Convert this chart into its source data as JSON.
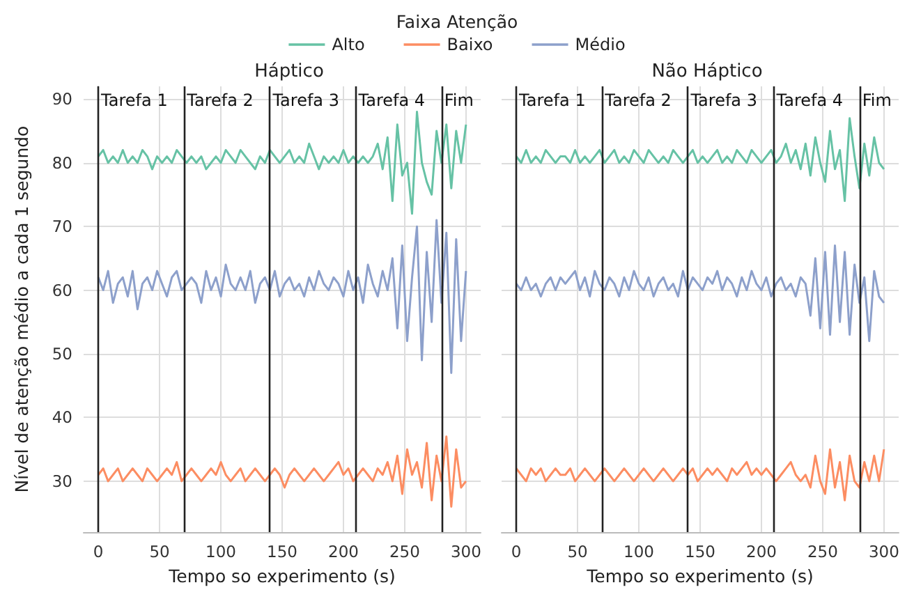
{
  "chart_data": [
    {
      "type": "line",
      "title": "Háptico",
      "xlabel": "Tempo so experimento (s)",
      "ylabel": "Nível de atenção médio a cada 1 segundo",
      "legend_title": "Faixa Atenção",
      "legend": "top",
      "grid": true,
      "xlim": [
        -12,
        312
      ],
      "xticks": [
        0,
        50,
        100,
        150,
        200,
        250,
        300
      ],
      "ylim": [
        22,
        92
      ],
      "yticks": [
        30,
        40,
        50,
        60,
        70,
        80,
        90
      ],
      "x": [
        0,
        4,
        8,
        12,
        16,
        20,
        24,
        28,
        32,
        36,
        40,
        44,
        48,
        52,
        56,
        60,
        64,
        68,
        72,
        76,
        80,
        84,
        88,
        92,
        96,
        100,
        104,
        108,
        112,
        116,
        120,
        124,
        128,
        132,
        136,
        140,
        144,
        148,
        152,
        156,
        160,
        164,
        168,
        172,
        176,
        180,
        184,
        188,
        192,
        196,
        200,
        204,
        208,
        212,
        216,
        220,
        224,
        228,
        232,
        236,
        240,
        244,
        248,
        252,
        256,
        260,
        264,
        268,
        272,
        276,
        280,
        284,
        288,
        292,
        296,
        300
      ],
      "ref_lines": [
        {
          "axis": "x",
          "value": 0,
          "label": "Tarefa 1",
          "color": "#222222"
        },
        {
          "axis": "x",
          "value": 70,
          "label": "Tarefa 2",
          "color": "#222222"
        },
        {
          "axis": "x",
          "value": 140,
          "label": "Tarefa 3",
          "color": "#222222"
        },
        {
          "axis": "x",
          "value": 210,
          "label": "Tarefa 4",
          "color": "#222222"
        },
        {
          "axis": "x",
          "value": 280,
          "label": "Fim",
          "color": "#222222"
        }
      ],
      "series": [
        {
          "name": "Alto",
          "color": "#66c2a5",
          "values": [
            81,
            82,
            80,
            81,
            80,
            82,
            80,
            81,
            80,
            82,
            81,
            79,
            81,
            80,
            81,
            80,
            82,
            81,
            80,
            81,
            80,
            81,
            79,
            80,
            81,
            80,
            82,
            81,
            80,
            82,
            81,
            80,
            79,
            81,
            80,
            82,
            81,
            80,
            81,
            82,
            80,
            81,
            80,
            83,
            81,
            79,
            81,
            80,
            81,
            80,
            82,
            80,
            81,
            80,
            81,
            80,
            81,
            83,
            79,
            84,
            74,
            86,
            78,
            80,
            72,
            88,
            80,
            77,
            75,
            85,
            80,
            86,
            76,
            85,
            80,
            86
          ]
        },
        {
          "name": "Baixo",
          "color": "#fc8d62",
          "values": [
            31,
            32,
            30,
            31,
            32,
            30,
            31,
            32,
            31,
            30,
            32,
            31,
            30,
            31,
            32,
            31,
            33,
            30,
            31,
            32,
            31,
            30,
            31,
            32,
            31,
            33,
            31,
            30,
            31,
            32,
            30,
            31,
            32,
            31,
            30,
            31,
            32,
            31,
            29,
            31,
            32,
            31,
            30,
            31,
            32,
            31,
            30,
            31,
            32,
            33,
            31,
            32,
            30,
            31,
            32,
            31,
            30,
            32,
            31,
            33,
            30,
            34,
            28,
            35,
            31,
            33,
            29,
            36,
            27,
            34,
            30,
            37,
            26,
            35,
            29,
            30
          ]
        },
        {
          "name": "Médio",
          "color": "#8da0cb",
          "values": [
            62,
            60,
            63,
            58,
            61,
            62,
            59,
            63,
            57,
            61,
            62,
            60,
            63,
            61,
            59,
            62,
            63,
            60,
            61,
            62,
            61,
            58,
            63,
            60,
            62,
            59,
            64,
            61,
            60,
            62,
            60,
            63,
            58,
            61,
            62,
            60,
            63,
            59,
            61,
            62,
            60,
            61,
            59,
            62,
            60,
            63,
            61,
            60,
            62,
            61,
            59,
            63,
            60,
            62,
            58,
            64,
            61,
            59,
            63,
            60,
            65,
            54,
            67,
            52,
            62,
            70,
            49,
            66,
            55,
            71,
            58,
            69,
            47,
            68,
            52,
            63
          ]
        }
      ]
    },
    {
      "type": "line",
      "title": "Não Háptico",
      "xlabel": "Tempo so experimento (s)",
      "grid": true,
      "tick_labels": "x",
      "xlim": [
        -12,
        312
      ],
      "xticks": [
        0,
        50,
        100,
        150,
        200,
        250,
        300
      ],
      "ylim": [
        22,
        92
      ],
      "yticks": [
        30,
        40,
        50,
        60,
        70,
        80,
        90
      ],
      "x": [
        0,
        4,
        8,
        12,
        16,
        20,
        24,
        28,
        32,
        36,
        40,
        44,
        48,
        52,
        56,
        60,
        64,
        68,
        72,
        76,
        80,
        84,
        88,
        92,
        96,
        100,
        104,
        108,
        112,
        116,
        120,
        124,
        128,
        132,
        136,
        140,
        144,
        148,
        152,
        156,
        160,
        164,
        168,
        172,
        176,
        180,
        184,
        188,
        192,
        196,
        200,
        204,
        208,
        212,
        216,
        220,
        224,
        228,
        232,
        236,
        240,
        244,
        248,
        252,
        256,
        260,
        264,
        268,
        272,
        276,
        280,
        284,
        288,
        292,
        296,
        300
      ],
      "ref_lines": [
        {
          "axis": "x",
          "value": 0,
          "label": "Tarefa 1",
          "color": "#222222"
        },
        {
          "axis": "x",
          "value": 70,
          "label": "Tarefa 2",
          "color": "#222222"
        },
        {
          "axis": "x",
          "value": 140,
          "label": "Tarefa 3",
          "color": "#222222"
        },
        {
          "axis": "x",
          "value": 210,
          "label": "Tarefa 4",
          "color": "#222222"
        },
        {
          "axis": "x",
          "value": 280,
          "label": "Fim",
          "color": "#222222"
        }
      ],
      "series": [
        {
          "name": "Alto",
          "color": "#66c2a5",
          "values": [
            81,
            80,
            82,
            80,
            81,
            80,
            82,
            81,
            80,
            81,
            81,
            80,
            82,
            80,
            81,
            80,
            81,
            82,
            80,
            81,
            82,
            80,
            81,
            80,
            82,
            81,
            80,
            82,
            81,
            80,
            81,
            80,
            82,
            81,
            80,
            81,
            82,
            80,
            81,
            80,
            81,
            82,
            80,
            81,
            80,
            82,
            81,
            80,
            82,
            81,
            80,
            81,
            82,
            80,
            81,
            83,
            80,
            82,
            79,
            83,
            78,
            84,
            80,
            77,
            85,
            79,
            82,
            74,
            87,
            81,
            76,
            83,
            78,
            84,
            80,
            79
          ]
        },
        {
          "name": "Baixo",
          "color": "#fc8d62",
          "values": [
            32,
            31,
            30,
            32,
            31,
            32,
            30,
            31,
            32,
            31,
            31,
            32,
            30,
            31,
            32,
            31,
            30,
            31,
            32,
            31,
            30,
            31,
            32,
            31,
            30,
            31,
            32,
            31,
            30,
            31,
            32,
            31,
            30,
            31,
            32,
            31,
            32,
            30,
            31,
            32,
            31,
            32,
            31,
            30,
            32,
            31,
            32,
            33,
            31,
            32,
            31,
            32,
            31,
            30,
            31,
            32,
            33,
            31,
            30,
            31,
            29,
            34,
            30,
            28,
            35,
            29,
            33,
            27,
            34,
            30,
            29,
            33,
            30,
            34,
            30,
            35
          ]
        },
        {
          "name": "Médio",
          "color": "#8da0cb",
          "values": [
            61,
            60,
            62,
            60,
            61,
            59,
            61,
            62,
            60,
            62,
            61,
            62,
            63,
            60,
            62,
            59,
            63,
            61,
            60,
            62,
            61,
            59,
            62,
            60,
            63,
            61,
            60,
            62,
            59,
            61,
            62,
            60,
            61,
            59,
            63,
            60,
            62,
            61,
            60,
            62,
            61,
            63,
            60,
            62,
            61,
            59,
            62,
            60,
            63,
            61,
            60,
            62,
            59,
            61,
            62,
            60,
            61,
            59,
            62,
            61,
            56,
            65,
            54,
            66,
            53,
            67,
            55,
            66,
            53,
            64,
            58,
            62,
            52,
            63,
            59,
            58
          ]
        }
      ]
    }
  ]
}
